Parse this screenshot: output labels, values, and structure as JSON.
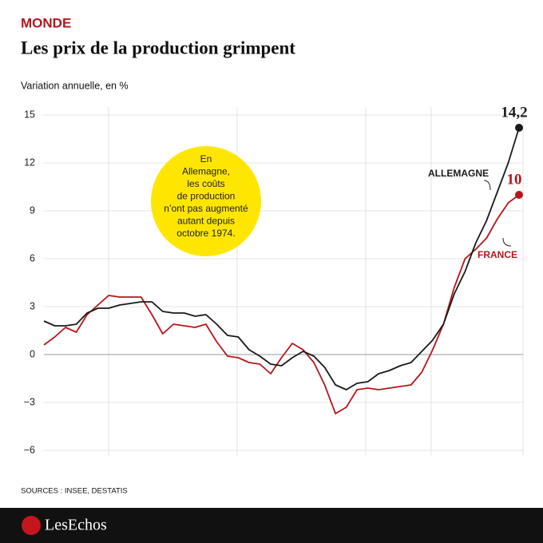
{
  "chart_data": {
    "type": "line",
    "kicker": "MONDE",
    "title": "Les prix de la production grimpent",
    "subtitle": "Variation annuelle, en %",
    "source": "SOURCES : INSEE, DESTATIS",
    "brand": "LesEchos",
    "annotation": [
      "En",
      "Allemagne,",
      "les coûts",
      "de production",
      "n’ont pas augmenté",
      "autant depuis",
      "octobre 1974."
    ],
    "categories": [
      null,
      null,
      null,
      null,
      null,
      null,
      null,
      null,
      null,
      null,
      null,
      null,
      null,
      null,
      null,
      null,
      null,
      null,
      null,
      null,
      null,
      null,
      null,
      null,
      null,
      null,
      null,
      null,
      null,
      null,
      null,
      null,
      null,
      null,
      null,
      null,
      null,
      null,
      null,
      null,
      null,
      null,
      null,
      null,
      null
    ],
    "series": [
      {
        "name": "ALLEMAGNE",
        "color": "#1a1a1a",
        "values": [
          2.1,
          1.8,
          1.8,
          1.9,
          2.6,
          2.9,
          2.9,
          3.1,
          3.2,
          3.3,
          3.3,
          2.7,
          2.6,
          2.6,
          2.4,
          2.5,
          1.9,
          1.2,
          1.1,
          0.3,
          -0.1,
          -0.6,
          -0.7,
          -0.2,
          0.2,
          -0.1,
          -0.8,
          -1.9,
          -2.2,
          -1.8,
          -1.7,
          -1.2,
          -1.0,
          -0.7,
          -0.5,
          0.2,
          0.9,
          1.9,
          3.8,
          5.2,
          7.0,
          8.4,
          10.2,
          12.0,
          14.2
        ],
        "value_labels": [
          null,
          null,
          null,
          null,
          null,
          null,
          null,
          null,
          null,
          null,
          null,
          null,
          null,
          null,
          null,
          null,
          null,
          null,
          null,
          null,
          null,
          null,
          null,
          null,
          null,
          null,
          null,
          null,
          null,
          null,
          null,
          null,
          null,
          null,
          null,
          null,
          null,
          null,
          null,
          null,
          null,
          null,
          null,
          null,
          "14,2"
        ]
      },
      {
        "name": "FRANCE",
        "color": "#b5161c",
        "values": [
          0.6,
          1.1,
          1.7,
          1.4,
          2.5,
          3.1,
          3.7,
          3.6,
          3.6,
          3.6,
          2.5,
          1.3,
          1.9,
          1.8,
          1.7,
          1.9,
          0.8,
          -0.1,
          -0.2,
          -0.5,
          -0.6,
          -1.2,
          -0.2,
          0.7,
          0.3,
          -0.5,
          -1.9,
          -3.7,
          -3.3,
          -2.2,
          -2.1,
          -2.2,
          -2.1,
          -2.0,
          -1.9,
          -1.1,
          0.3,
          1.9,
          4.2,
          6.0,
          6.6,
          7.3,
          8.5,
          9.5,
          10
        ],
        "value_labels": [
          null,
          null,
          null,
          null,
          null,
          null,
          null,
          null,
          null,
          null,
          null,
          null,
          null,
          null,
          null,
          null,
          null,
          null,
          null,
          null,
          null,
          null,
          null,
          null,
          null,
          null,
          null,
          null,
          null,
          null,
          null,
          null,
          null,
          null,
          null,
          null,
          null,
          null,
          null,
          null,
          null,
          null,
          null,
          null,
          "10"
        ]
      }
    ],
    "ylim": [
      -6,
      15
    ],
    "yticks": [
      15,
      12,
      9,
      6,
      3,
      0,
      {
        "value": -3,
        "label": "−3"
      },
      {
        "value": -6,
        "label": "−6"
      }
    ],
    "grid": true
  }
}
